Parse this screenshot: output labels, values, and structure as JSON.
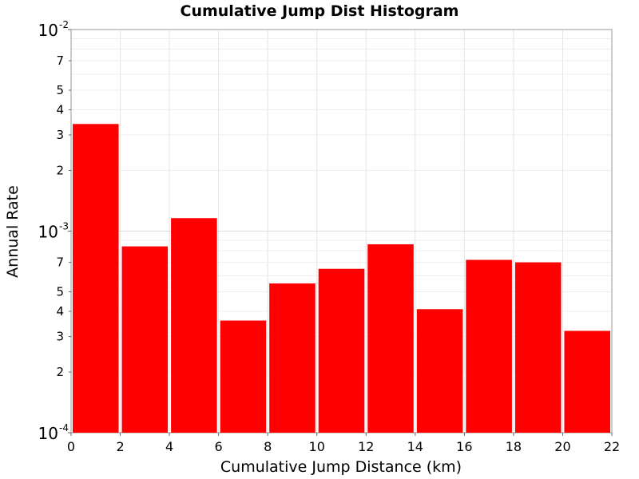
{
  "chart_data": {
    "type": "bar",
    "title": "Cumulative Jump Dist Histogram",
    "xlabel": "Cumulative Jump Distance (km)",
    "ylabel": "Annual Rate",
    "y_scale": "log",
    "xlim": [
      0,
      22
    ],
    "ylim": [
      0.0001,
      0.01
    ],
    "grid": true,
    "bar_color": "#ff0000",
    "x_ticks": [
      "0",
      "2",
      "4",
      "6",
      "8",
      "10",
      "12",
      "14",
      "16",
      "18",
      "20",
      "22"
    ],
    "y_decade_ticks": [
      {
        "value": 0.0001,
        "base": "10",
        "exp": "-4"
      },
      {
        "value": 0.001,
        "base": "10",
        "exp": "-3"
      },
      {
        "value": 0.01,
        "base": "10",
        "exp": "-2"
      }
    ],
    "y_minor_ticks": [
      {
        "value": 0.0002,
        "label": "2"
      },
      {
        "value": 0.0003,
        "label": "3"
      },
      {
        "value": 0.0004,
        "label": "4"
      },
      {
        "value": 0.0005,
        "label": "5"
      },
      {
        "value": 0.0007,
        "label": "7"
      },
      {
        "value": 0.002,
        "label": "2"
      },
      {
        "value": 0.003,
        "label": "3"
      },
      {
        "value": 0.004,
        "label": "4"
      },
      {
        "value": 0.005,
        "label": "5"
      },
      {
        "value": 0.007,
        "label": "7"
      }
    ],
    "bins": [
      {
        "x0": 0,
        "x1": 2,
        "value": 0.0034
      },
      {
        "x0": 2,
        "x1": 4,
        "value": 0.00084
      },
      {
        "x0": 4,
        "x1": 6,
        "value": 0.00116
      },
      {
        "x0": 6,
        "x1": 8,
        "value": 0.00036
      },
      {
        "x0": 8,
        "x1": 10,
        "value": 0.00055
      },
      {
        "x0": 10,
        "x1": 12,
        "value": 0.00065
      },
      {
        "x0": 12,
        "x1": 14,
        "value": 0.00086
      },
      {
        "x0": 14,
        "x1": 16,
        "value": 0.00041
      },
      {
        "x0": 16,
        "x1": 18,
        "value": 0.00072
      },
      {
        "x0": 18,
        "x1": 20,
        "value": 0.0007
      },
      {
        "x0": 20,
        "x1": 22,
        "value": 0.00032
      }
    ]
  }
}
